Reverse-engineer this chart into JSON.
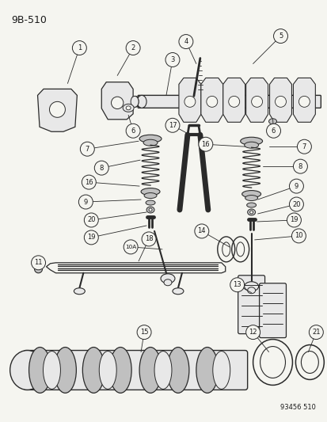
{
  "title": "9B-510",
  "bg_color": "#f5f5f0",
  "line_color": "#2a2a2a",
  "font_color": "#1a1a1a",
  "diagram_id": "93456 510",
  "figsize": [
    4.14,
    5.33
  ],
  "dpi": 100
}
